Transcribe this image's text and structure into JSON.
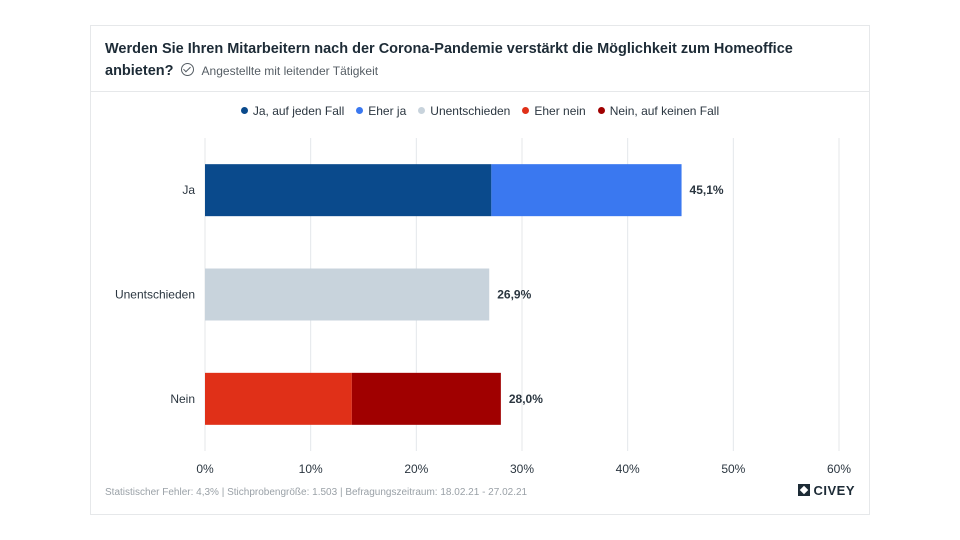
{
  "header": {
    "title": "Werden Sie Ihren Mitarbeitern nach der Corona-Pandemie verstärkt die Möglichkeit zum Homeoffice anbieten?",
    "subtitle": "Angestellte mit leitender Tätigkeit"
  },
  "legend": {
    "items": [
      {
        "label": "Ja, auf jeden Fall",
        "color": "#0a4a8c"
      },
      {
        "label": "Eher ja",
        "color": "#3a78f0"
      },
      {
        "label": "Unentschieden",
        "color": "#c8d3dc"
      },
      {
        "label": "Eher nein",
        "color": "#e03018"
      },
      {
        "label": "Nein, auf keinen Fall",
        "color": "#a00000"
      }
    ]
  },
  "chart_data": {
    "type": "bar",
    "orientation": "horizontal",
    "stacked": true,
    "categories": [
      "Ja",
      "Unentschieden",
      "Nein"
    ],
    "series": [
      {
        "name": "Ja, auf jeden Fall",
        "color": "#0a4a8c",
        "values": [
          27.1,
          0,
          0
        ]
      },
      {
        "name": "Eher ja",
        "color": "#3a78f0",
        "values": [
          18.0,
          0,
          0
        ]
      },
      {
        "name": "Unentschieden",
        "color": "#c8d3dc",
        "values": [
          0,
          26.9,
          0
        ]
      },
      {
        "name": "Eher nein",
        "color": "#e03018",
        "values": [
          0,
          0,
          13.9
        ]
      },
      {
        "name": "Nein, auf keinen Fall",
        "color": "#a00000",
        "values": [
          0,
          0,
          14.1
        ]
      }
    ],
    "totals": [
      45.1,
      26.9,
      28.0
    ],
    "total_labels": [
      "45,1%",
      "26,9%",
      "28,0%"
    ],
    "xlim": [
      0,
      60
    ],
    "xticks": [
      0,
      10,
      20,
      30,
      40,
      50,
      60
    ],
    "xtick_labels": [
      "0%",
      "10%",
      "20%",
      "30%",
      "40%",
      "50%",
      "60%"
    ],
    "grid": true,
    "legend_position": "top-center"
  },
  "footer": {
    "text": "Statistischer Fehler: 4,3% | Stichprobengröße: 1.503 | Befragungszeitraum: 18.02.21 - 27.02.21",
    "brand": "CIVEY"
  }
}
